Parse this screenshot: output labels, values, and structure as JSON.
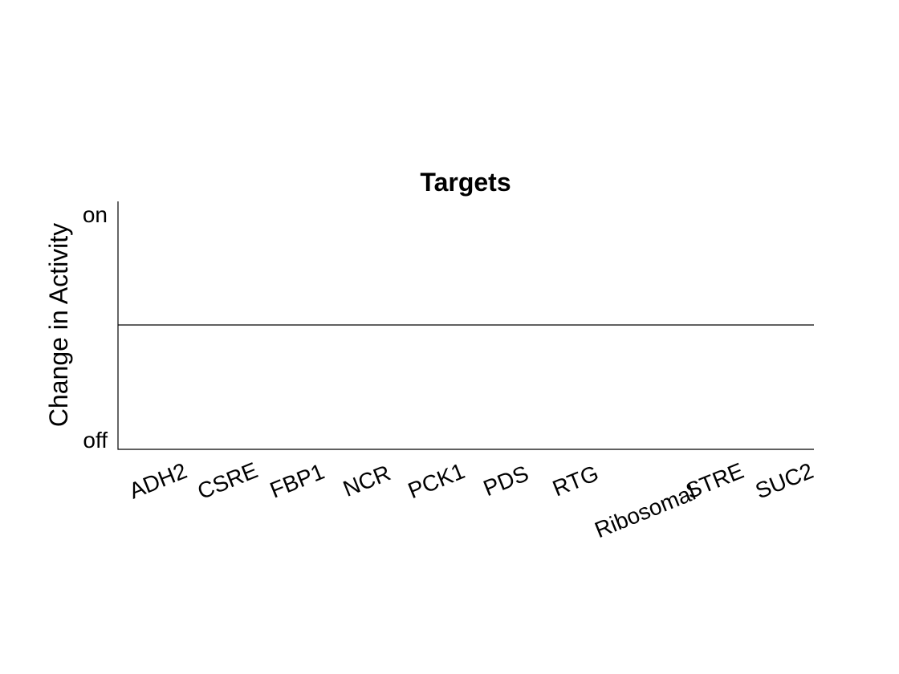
{
  "chart_data": {
    "type": "bar",
    "title": "Targets",
    "xlabel": "",
    "ylabel": "Change in Activity",
    "categories": [
      "ADH2",
      "CSRE",
      "FBP1",
      "NCR",
      "PCK1",
      "PDS",
      "RTG",
      "Ribosomal",
      "STRE",
      "SUC2"
    ],
    "values": [
      0,
      0,
      0,
      0,
      0,
      0,
      0,
      0,
      0,
      0
    ],
    "ylim": [
      -1,
      1
    ],
    "yticks": [
      {
        "value": 1,
        "label": "on"
      },
      {
        "value": -1,
        "label": "off"
      }
    ],
    "grid": false,
    "baseline": 0
  }
}
